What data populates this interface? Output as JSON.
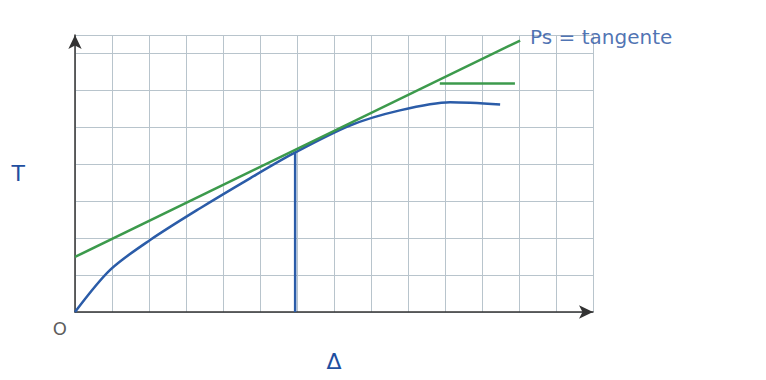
{
  "chart_data": {
    "type": "line",
    "xlabel": "Δ",
    "ylabel": "T",
    "annotations": [
      {
        "text": "Ps = tangente",
        "x": 12.03,
        "y": 7.35
      },
      {
        "text": "O",
        "x": 0,
        "y": 0
      }
    ],
    "xlim": [
      0,
      14
    ],
    "ylim": [
      0,
      7.5
    ],
    "xticks": [
      0,
      1,
      2,
      3,
      4,
      5,
      6,
      7,
      8,
      9,
      10,
      11,
      12,
      13,
      14
    ],
    "yticks": [
      0,
      1,
      2,
      3,
      4,
      5,
      6,
      7
    ],
    "grid": true,
    "tick_labels": false,
    "series": [
      {
        "x": [
          0,
          0.95,
          2.03,
          3.38,
          4.73,
          5.95,
          7.43,
          8.78,
          10.14,
          11.49
        ],
        "values": [
          0,
          1.14,
          1.95,
          2.81,
          3.62,
          4.32,
          5.05,
          5.46,
          5.68,
          5.62
        ],
        "color": "#2b5ca8",
        "line_style": "solid"
      },
      {
        "x": [
          0,
          12.03
        ],
        "values": [
          1.49,
          7.35
        ],
        "color": "#3c9a4c",
        "line_style": "solid"
      },
      {
        "x": [
          5.95,
          5.95
        ],
        "values": [
          0,
          4.32
        ],
        "color": "#2b5ca8",
        "line_style": "solid"
      },
      {
        "x": [
          9.86,
          11.89
        ],
        "values": [
          6.19,
          6.19
        ],
        "color": "#3c9a4c",
        "line_style": "solid"
      }
    ]
  }
}
